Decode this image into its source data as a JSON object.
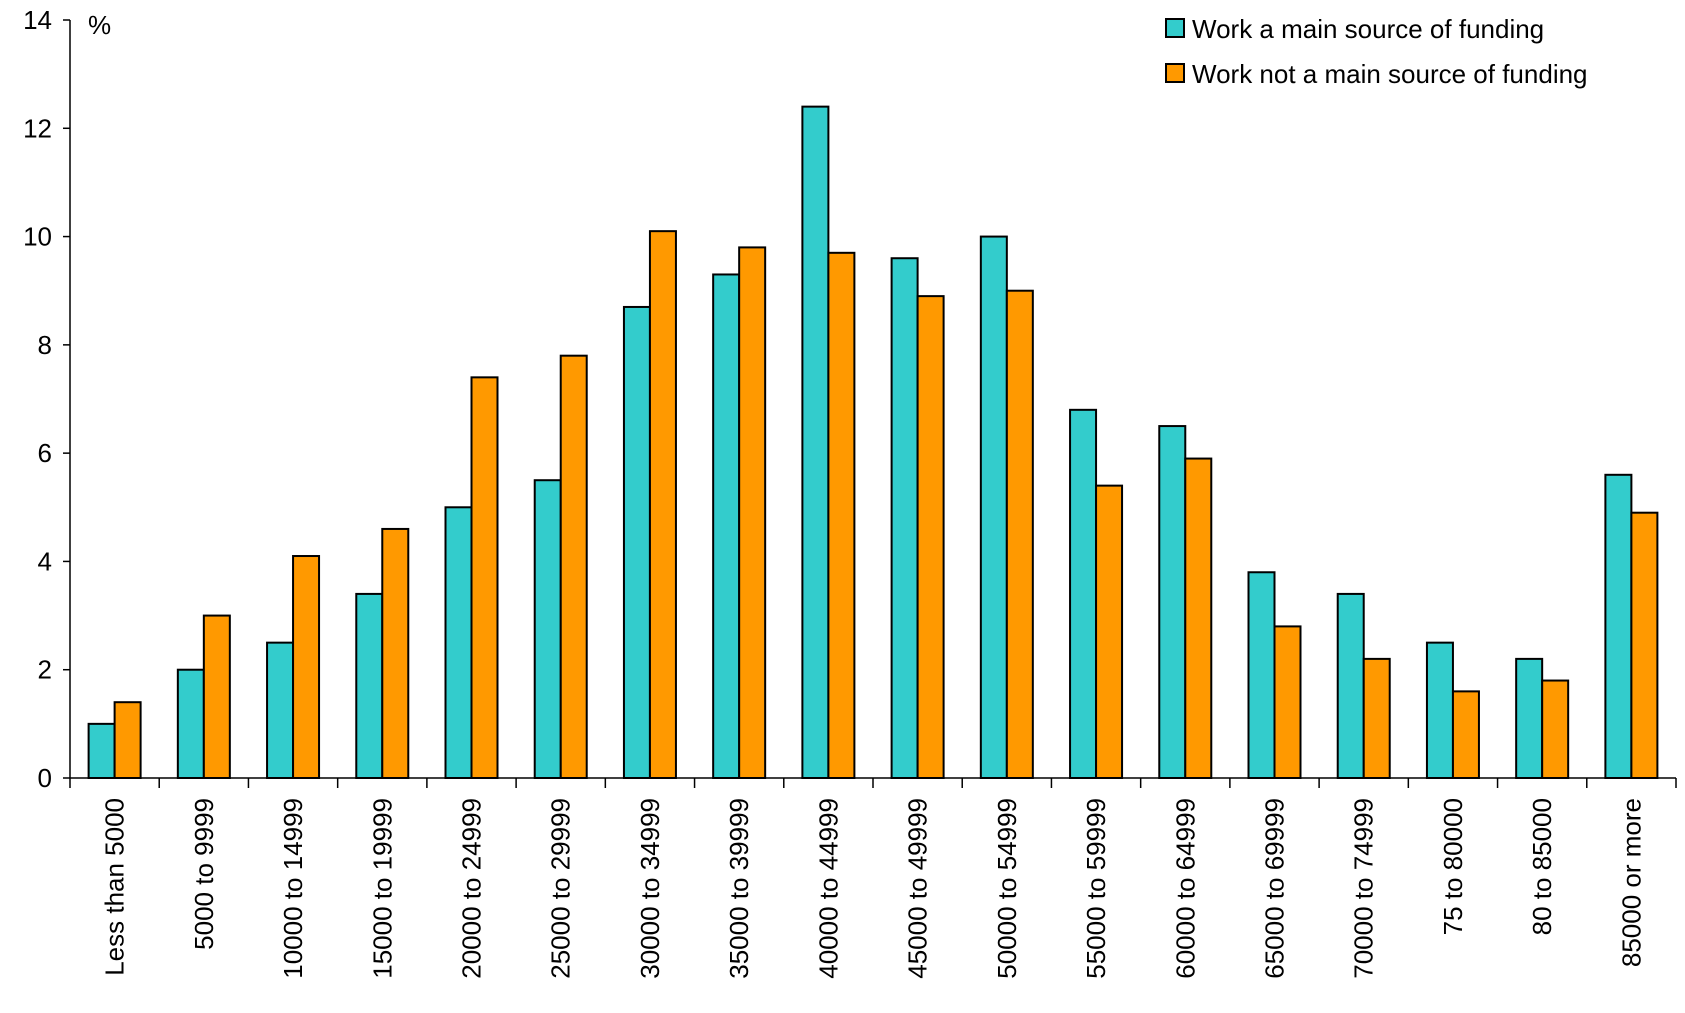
{
  "chart_data": {
    "type": "bar",
    "title": "",
    "xlabel": "",
    "ylabel": "%",
    "ylim": [
      0,
      14
    ],
    "yticks": [
      0,
      2,
      4,
      6,
      8,
      10,
      12,
      14
    ],
    "grid": false,
    "legend_position": "top-right",
    "categories": [
      "Less than 5000",
      "5000 to 9999",
      "10000 to 14999",
      "15000 to 19999",
      "20000 to 24999",
      "25000 to 29999",
      "30000 to 34999",
      "35000 to 39999",
      "40000 to 44999",
      "45000 to 49999",
      "50000 to 54999",
      "55000 to 59999",
      "60000 to 64999",
      "65000 to 69999",
      "70000 to 74999",
      "75 to 80000",
      "80 to 85000",
      "85000 or more"
    ],
    "series": [
      {
        "name": "Work a main source of funding",
        "color": "#33CCCC",
        "values": [
          1.0,
          2.0,
          2.5,
          3.4,
          5.0,
          5.5,
          8.7,
          9.3,
          12.4,
          9.6,
          10.0,
          6.8,
          6.5,
          3.8,
          3.4,
          2.5,
          2.2,
          5.6
        ]
      },
      {
        "name": "Work not a main source of funding",
        "color": "#FF9900",
        "values": [
          1.4,
          3.0,
          4.1,
          4.6,
          7.4,
          7.8,
          10.1,
          9.8,
          9.7,
          8.9,
          9.0,
          5.4,
          5.9,
          2.8,
          2.2,
          1.6,
          1.8,
          4.9
        ]
      }
    ]
  }
}
